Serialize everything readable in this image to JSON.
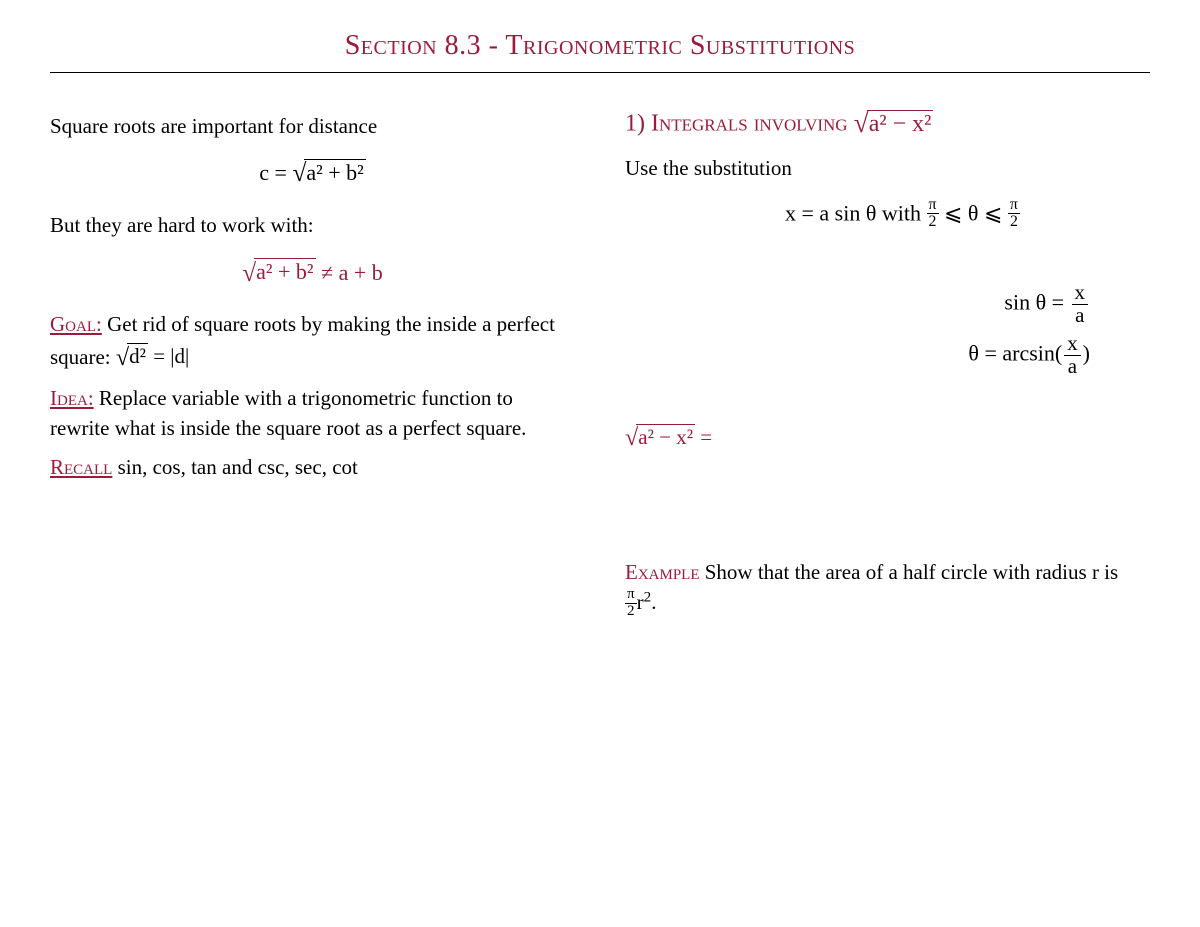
{
  "colors": {
    "accent": "#9b1b3a",
    "text": "#000000",
    "background": "#ffffff",
    "rule": "#000000"
  },
  "title": "Section 8.3 - Trigonometric Substitutions",
  "left": {
    "p1": "Square roots are important for distance",
    "eq1_lhs": "c = ",
    "eq1_rad": "a² + b²",
    "p2": "But they are hard to work with:",
    "eq2_rad": "a² + b²",
    "eq2_tail": " ≠ a + b",
    "goal_kw": "Goal:",
    "goal_text_a": " Get rid of square roots by making the inside a perfect square: ",
    "goal_rad": "d²",
    "goal_tail": " = |d|",
    "idea_kw": "Idea:",
    "idea_text": " Replace variable with a trigonometric function to rewrite what is inside the square root as a perfect square.",
    "recall_kw": "Recall",
    "recall_text": " sin, cos, tan and csc, sec, cot"
  },
  "right": {
    "h1_prefix": "1) Integrals involving ",
    "h1_rad": "a² − x²",
    "p1": "Use the substitution",
    "sub_eq": "x = a sin θ with ",
    "sub_frac1_n": "π",
    "sub_frac1_d": "2",
    "sub_mid": " ⩽ θ ⩽ ",
    "sub_frac2_n": "π",
    "sub_frac2_d": "2",
    "eq_sin_lhs": "sin θ = ",
    "eq_sin_frac_n": "x",
    "eq_sin_frac_d": "a",
    "eq_theta_lhs": "θ = arcsin(",
    "eq_theta_frac_n": "x",
    "eq_theta_frac_d": "a",
    "eq_theta_tail": ")",
    "deriv_rad": "a² − x²",
    "deriv_tail": " =",
    "example_kw": "Example",
    "example_text_a": " Show that the area of a half circle with radius r is ",
    "example_frac_n": "π",
    "example_frac_d": "2",
    "example_tail_a": "r",
    "example_tail_b": "."
  }
}
